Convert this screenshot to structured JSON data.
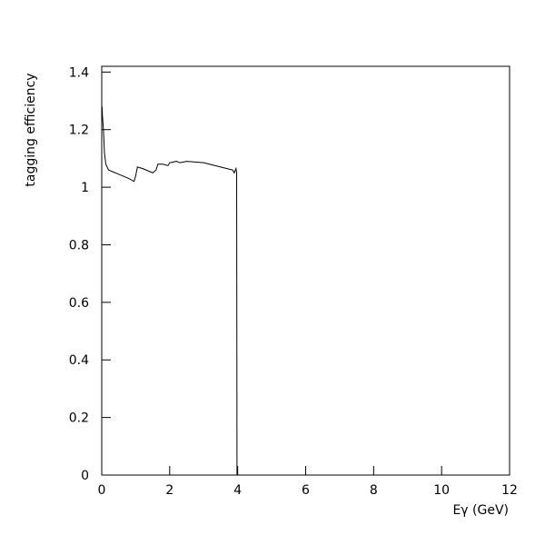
{
  "chart_data": {
    "type": "line",
    "xlabel": "Eγ (GeV)",
    "ylabel": "tagging efficiency",
    "xlim": [
      0,
      12
    ],
    "ylim": [
      0,
      1.42
    ],
    "xticks": [
      0,
      2,
      4,
      6,
      8,
      10,
      12
    ],
    "yticks": [
      0,
      0.2,
      0.4,
      0.6,
      0.8,
      1,
      1.2,
      1.4
    ],
    "color": "#000000",
    "x": [
      0.01,
      0.02,
      0.05,
      0.08,
      0.12,
      0.2,
      0.4,
      0.6,
      0.8,
      0.95,
      1.0,
      1.05,
      1.2,
      1.5,
      1.6,
      1.65,
      1.8,
      1.95,
      2.0,
      2.2,
      2.3,
      2.5,
      3.0,
      3.5,
      3.85,
      3.9,
      3.95,
      3.97,
      3.98,
      12
    ],
    "values": [
      1.28,
      1.25,
      1.2,
      1.12,
      1.08,
      1.06,
      1.05,
      1.04,
      1.03,
      1.02,
      1.04,
      1.07,
      1.065,
      1.05,
      1.06,
      1.08,
      1.08,
      1.075,
      1.085,
      1.09,
      1.085,
      1.09,
      1.085,
      1.07,
      1.06,
      1.05,
      1.065,
      1.05,
      0,
      0
    ]
  }
}
